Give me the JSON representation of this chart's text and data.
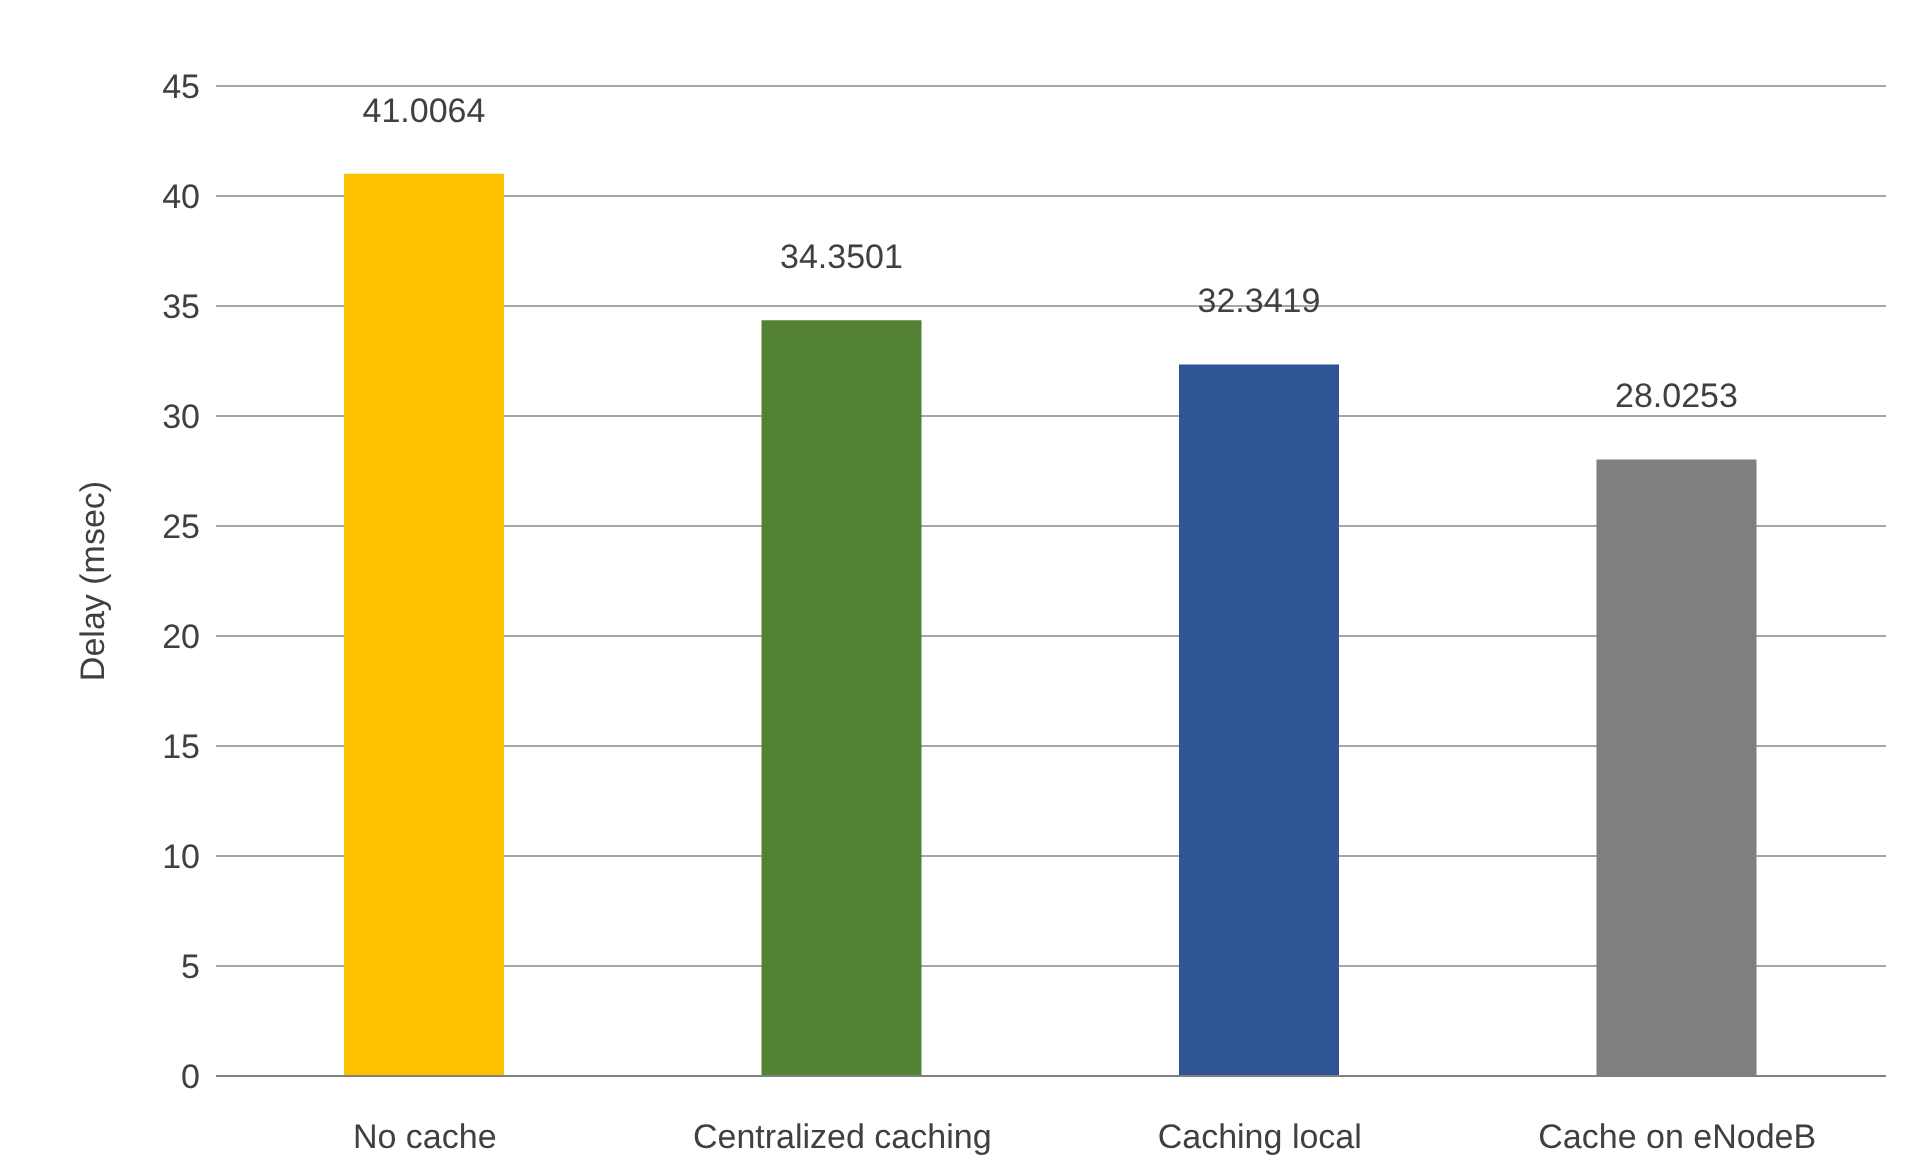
{
  "chart_data": {
    "type": "bar",
    "ylabel": "Delay (msec)",
    "categories": [
      "No cache",
      "Centralized caching",
      "Caching local",
      "Cache on eNodeB"
    ],
    "values": [
      41.0064,
      34.3501,
      32.3419,
      28.0253
    ],
    "colors": [
      "#ffc000",
      "#548235",
      "#2f5597",
      "#7f7f7f"
    ],
    "ylim": [
      0,
      45
    ],
    "yticks": [
      0,
      5,
      10,
      15,
      20,
      25,
      30,
      35,
      40,
      45
    ],
    "grid": "y",
    "data_labels": true
  }
}
